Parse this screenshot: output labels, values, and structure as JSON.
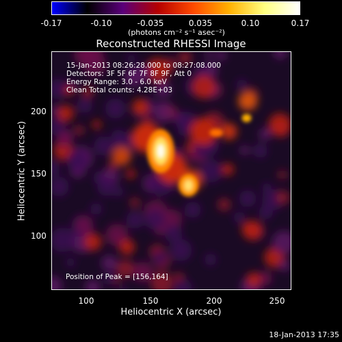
{
  "colorbar": {
    "ticks": [
      "-0.17",
      "-0.10",
      "-0.035",
      "0.035",
      "0.10",
      "0.17"
    ],
    "unit_label": "(photons cm⁻² s⁻¹ asec⁻²)",
    "range": [
      -0.17,
      0.17
    ],
    "gradient": [
      "#0000ff",
      "#000000",
      "#5a007a",
      "#b50000",
      "#ff4a00",
      "#ffb000",
      "#ffff80",
      "#ffffff"
    ]
  },
  "image": {
    "title": "Reconstructed RHESSI Image",
    "info_lines": [
      "15-Jan-2013 08:26:28.000 to 08:27:08.000",
      "Detectors: 3F 5F 6F 7F 8F 9F, Att 0",
      "Energy Range: 3.0 - 6.0 keV",
      "Clean     Total counts: 4.28E+03"
    ],
    "peak_label": "Position of Peak = [156,164]",
    "xlabel": "Heliocentric X (arcsec)",
    "ylabel": "Heliocentric Y (arcsec)",
    "xticks": [
      "100",
      "150",
      "200",
      "250"
    ],
    "yticks": [
      "100",
      "150",
      "200"
    ],
    "x_range": [
      70,
      260
    ],
    "y_range": [
      50,
      245
    ],
    "peak": [
      156,
      164
    ]
  },
  "footer": {
    "datestamp": "18-Jan-2013 17:35"
  }
}
